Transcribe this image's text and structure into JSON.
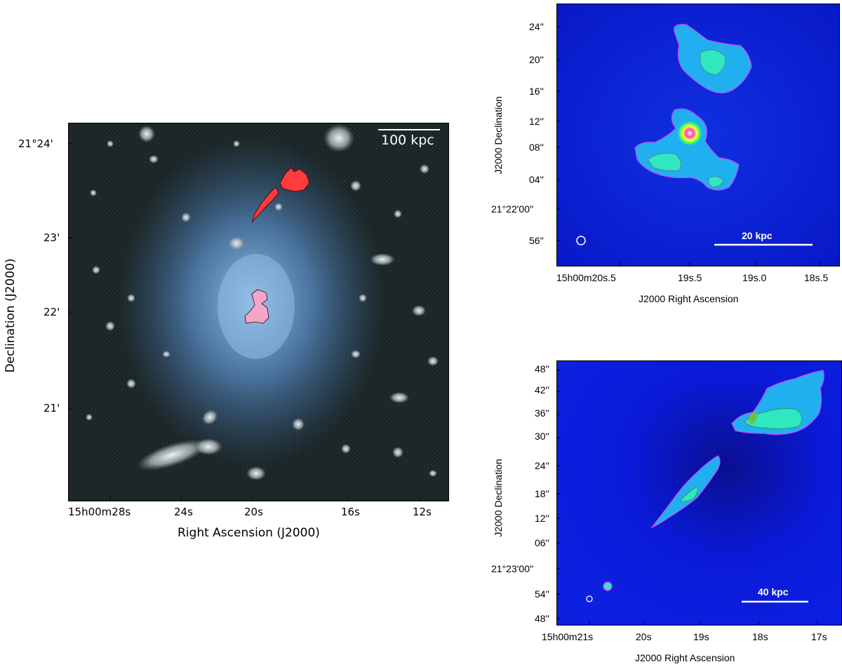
{
  "left_panel": {
    "scalebar_label": "100 kpc",
    "x_axis_title": "Right Ascension (J2000)",
    "y_axis_title": "Declination (J2000)",
    "x_ticks": [
      "15h00m28s",
      "24s",
      "20s",
      "16s",
      "12s"
    ],
    "y_ticks": [
      "21°24'",
      "23'",
      "22'",
      "21'"
    ]
  },
  "top_right_panel": {
    "scalebar_label": "20 kpc",
    "x_axis_title": "J2000 Right Ascension",
    "y_axis_title": "J2000 Declination",
    "x_ticks": [
      "15h00m20s.5",
      "19s.5",
      "19s.0",
      "18s.5"
    ],
    "y_ticks": [
      "24''",
      "20''",
      "16''",
      "12''",
      "08''",
      "04''",
      "21°22'00''",
      "56''"
    ]
  },
  "bottom_right_panel": {
    "scalebar_label": "40 kpc",
    "x_axis_title": "J2000 Right Ascension",
    "y_axis_title": "J2000 Declination",
    "x_ticks": [
      "15h00m21s",
      "20s",
      "19s",
      "18s",
      "17s"
    ],
    "y_ticks": [
      "48''",
      "42''",
      "36''",
      "30''",
      "24''",
      "18''",
      "12''",
      "06''",
      "21°23'00''",
      "54''",
      "48''"
    ]
  },
  "colors": {
    "optical_background": "#1b2526",
    "xray_glow": "#5a8fc8",
    "radio_red": "#ff3b3b",
    "radio_pink": "#f4a6c8",
    "radio_map_background": "#0a1ad8",
    "contour_magenta": "#d040ff"
  }
}
